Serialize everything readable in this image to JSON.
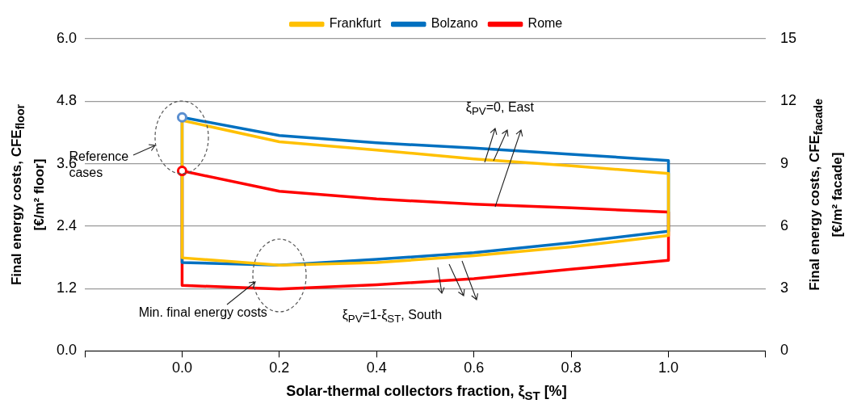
{
  "chart_data": {
    "type": "line",
    "xlabel": "Solar-thermal collectors fraction, ξ$_{ST}$ [%]",
    "ylabel": "Final energy costs, CFE$_{floor}$ [€/m² floor]",
    "y2label": "Final energy costs, CFE$_{facade}$ [€/m² facade]",
    "xlim": [
      -0.2,
      1.2
    ],
    "xticks": [
      {
        "value": -0.2,
        "label": null
      },
      {
        "value": 0,
        "label": "0.0"
      },
      {
        "value": 0.2,
        "label": "0.2"
      },
      {
        "value": 0.4,
        "label": "0.4"
      },
      {
        "value": 0.6,
        "label": "0.6"
      },
      {
        "value": 0.8,
        "label": "0.8"
      },
      {
        "value": 1,
        "label": "1.0"
      },
      {
        "value": 1.2,
        "label": null
      }
    ],
    "ylim": [
      0,
      6
    ],
    "yticks": [
      {
        "value": 0,
        "label": "0.0"
      },
      {
        "value": 1.2,
        "label": "1.2"
      },
      {
        "value": 2.4,
        "label": "2.4"
      },
      {
        "value": 3.6,
        "label": "3.6"
      },
      {
        "value": 4.8,
        "label": "4.8"
      },
      {
        "value": 6,
        "label": "6.0"
      }
    ],
    "y2lim": [
      0,
      15
    ],
    "y2ticks": [
      0,
      3,
      6,
      9,
      12,
      15
    ],
    "grid": "y",
    "legend": "top",
    "marker": "none",
    "line_style": "solid",
    "series": [
      {
        "name": "Frankfurt",
        "color": "#ffc000",
        "x": [
          0,
          0.2,
          0.4,
          0.6,
          0.8,
          1,
          1
        ],
        "values": [
          4.43,
          4.02,
          3.86,
          3.69,
          3.56,
          3.41,
          2.22
        ]
      },
      {
        "color": "#ffc000",
        "x": [
          0,
          0,
          0.2,
          0.4,
          0.6,
          0.8,
          1
        ],
        "values": [
          4.43,
          1.79,
          1.65,
          1.7,
          1.83,
          2.0,
          2.22
        ]
      },
      {
        "name": "Bolzano",
        "color": "#0070c0",
        "x": [
          0,
          0.2,
          0.4,
          0.6,
          0.8,
          1,
          1
        ],
        "values": [
          4.49,
          4.14,
          4.0,
          3.9,
          3.78,
          3.66,
          2.3
        ]
      },
      {
        "color": "#0070c0",
        "x": [
          0,
          0,
          0.2,
          0.4,
          0.6,
          0.8,
          1
        ],
        "values": [
          4.49,
          1.7,
          1.65,
          1.76,
          1.89,
          2.08,
          2.3
        ]
      },
      {
        "name": "Rome",
        "color": "#ff0000",
        "x": [
          0,
          0.2,
          0.4,
          0.6,
          0.8,
          1,
          1
        ],
        "values": [
          3.46,
          3.07,
          2.92,
          2.82,
          2.75,
          2.67,
          1.74
        ]
      },
      {
        "color": "#ff0000",
        "x": [
          0,
          0,
          0.2,
          0.4,
          0.6,
          0.8,
          1
        ],
        "values": [
          3.46,
          1.26,
          1.19,
          1.27,
          1.39,
          1.57,
          1.74
        ]
      },
      {
        "type": "scatter",
        "marker": "circle",
        "x": [
          0,
          0
        ],
        "values": [
          4.49,
          3.46
        ],
        "colors": [
          "#5b8fd0",
          "#ff0000"
        ]
      }
    ],
    "annotations": [
      "Reference cases",
      "Min. final energy costs",
      {
        "text": "ξ$_{PV}$=0, East",
        "x": 0.65,
        "y": 3.8
      },
      "ξ$_{PV}$=1-ξ$_{ST}$, South"
    ]
  }
}
